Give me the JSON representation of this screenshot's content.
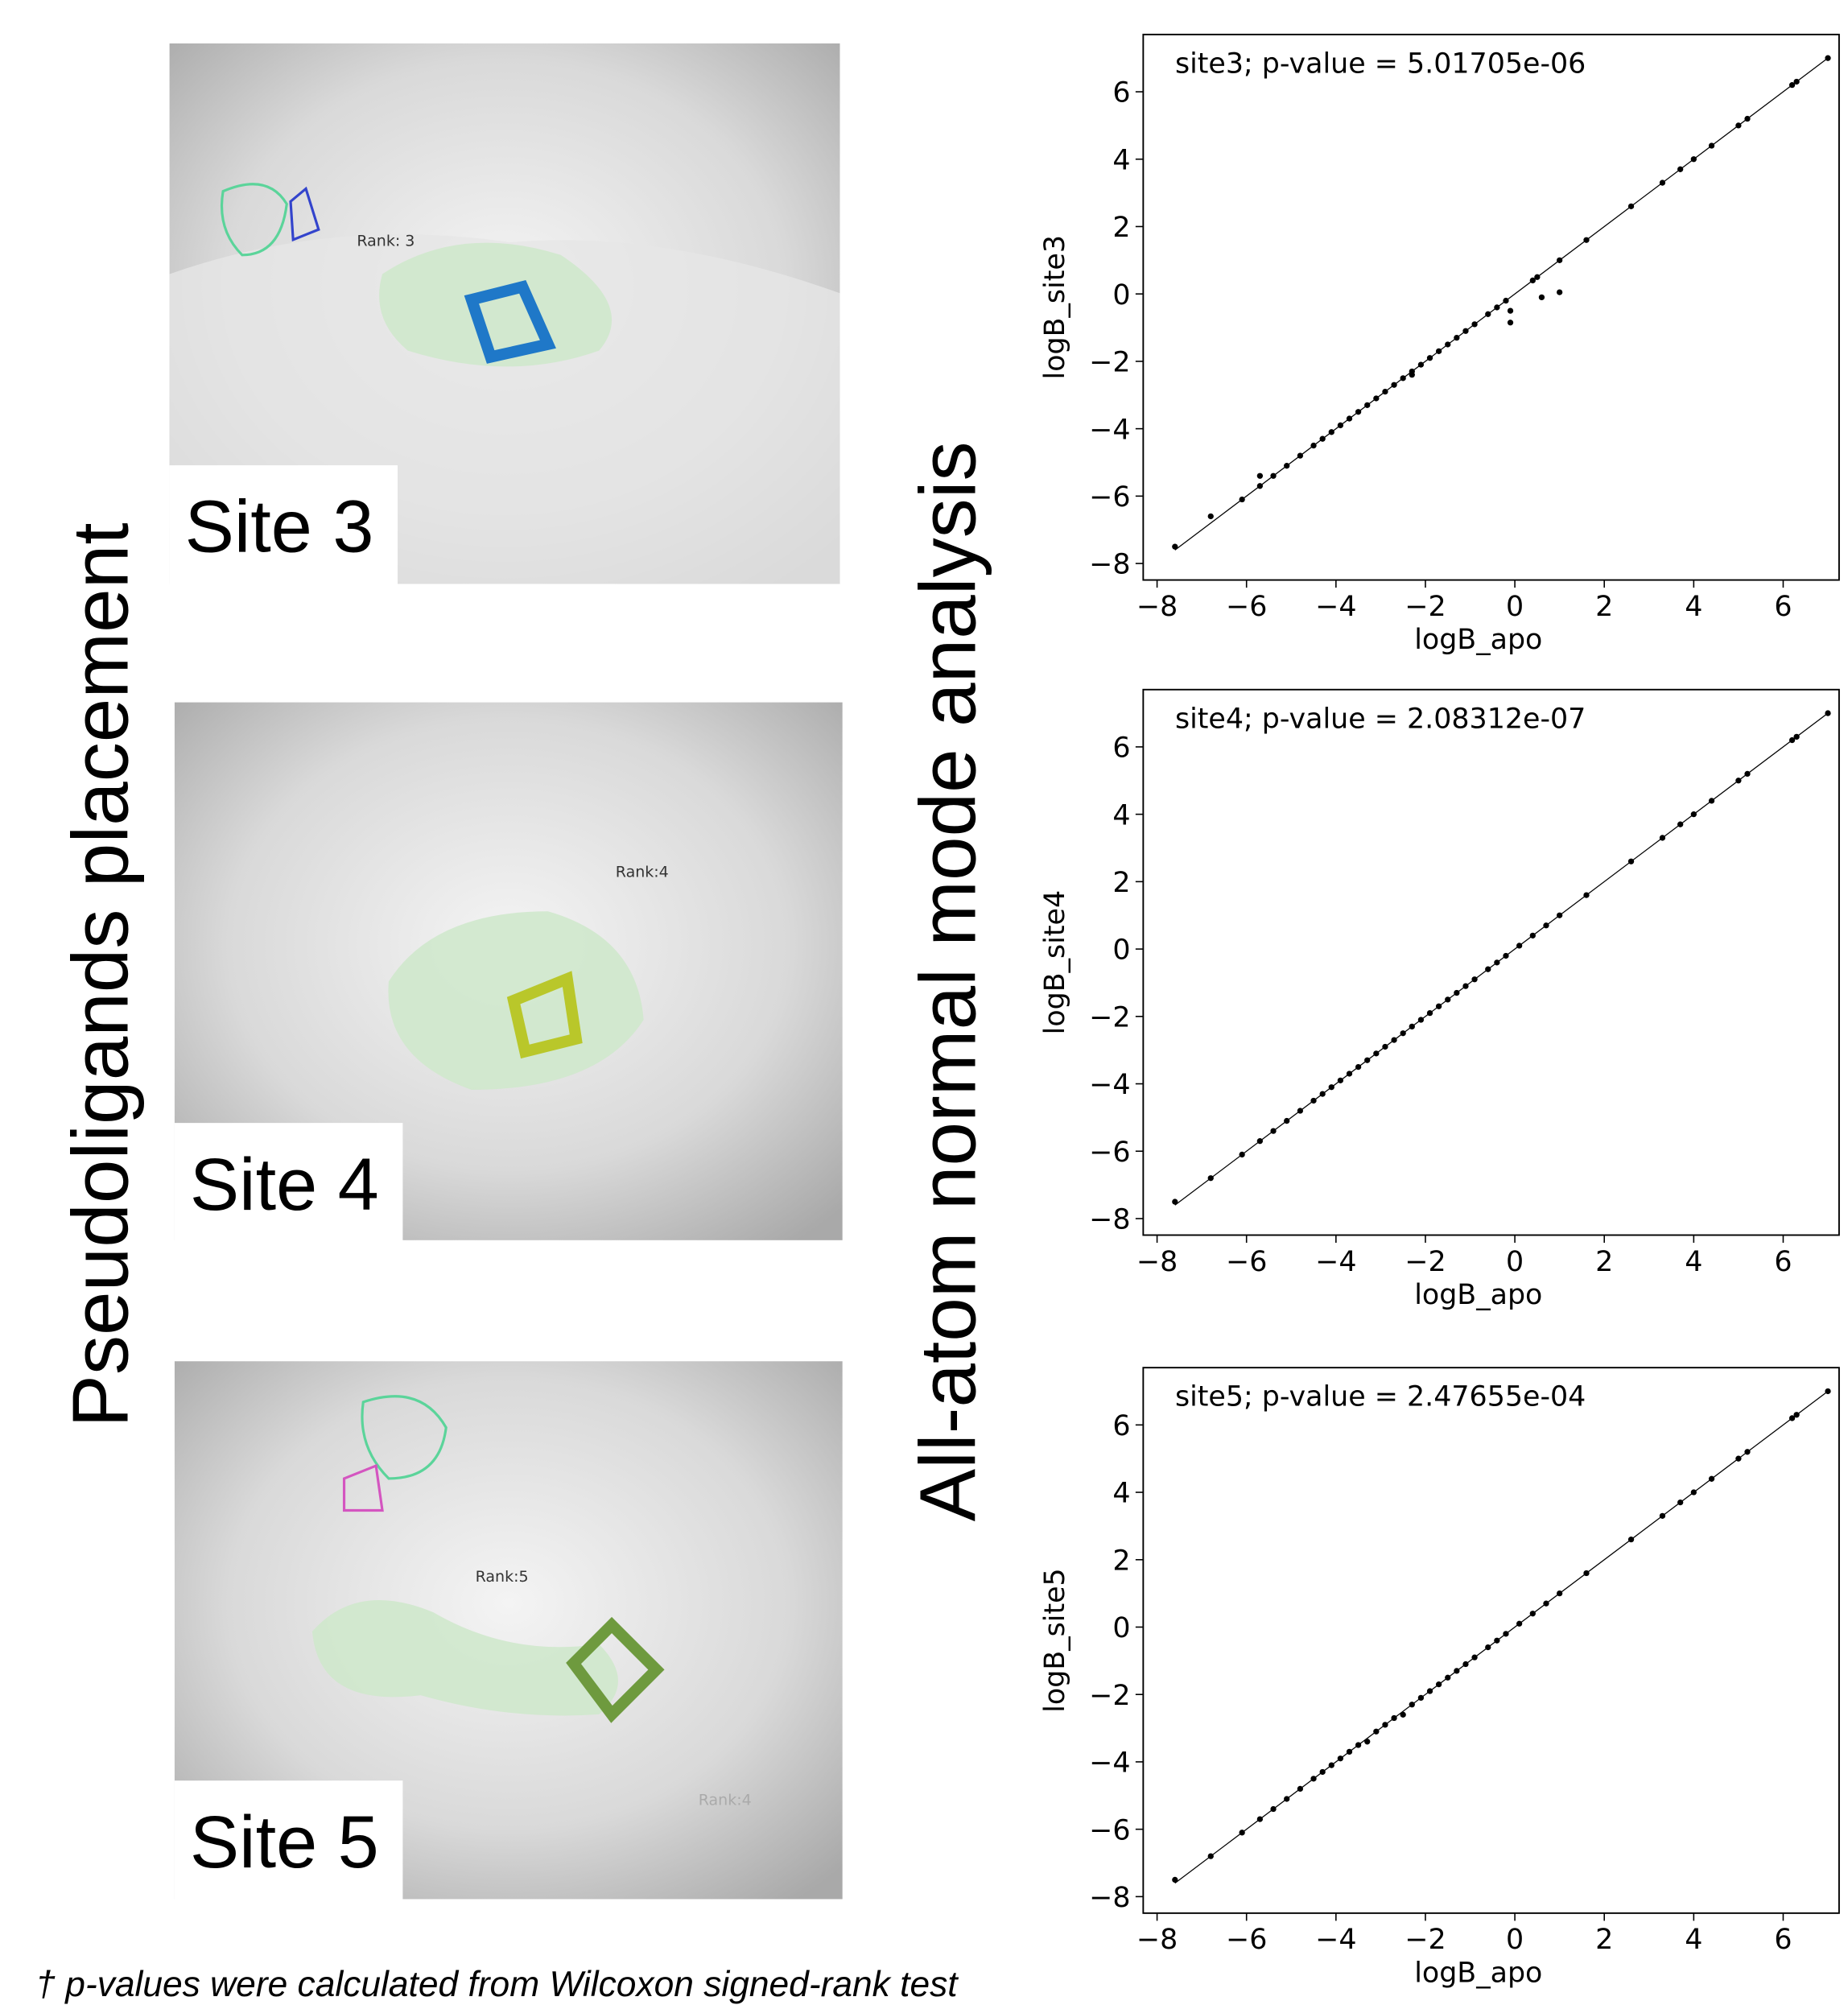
{
  "figure": {
    "left_label": "Pseudoligands placement",
    "middle_label": "All-atom normal mode analysis",
    "panels": [
      {
        "label": "Site 3",
        "rank": "Rank: 3"
      },
      {
        "label": "Site 4",
        "rank": "Rank:4"
      },
      {
        "label": "Site 5",
        "rank": "Rank:5",
        "extra_rank": "Rank:4"
      }
    ],
    "footnote": "† p-values were calculated from Wilcoxon signed-rank test"
  },
  "chart_data": [
    {
      "type": "scatter",
      "title": "site3; p-value = 5.01705e-06",
      "x_label": "logB_apo",
      "y_label": "logB_site3",
      "color": "#000000",
      "x": [
        -7.6,
        -6.8,
        -6.1,
        -5.7,
        -5.7,
        -5.4,
        -5.1,
        -4.8,
        -4.5,
        -4.3,
        -4.1,
        -3.9,
        -3.7,
        -3.5,
        -3.3,
        -3.1,
        -2.9,
        -2.7,
        -2.5,
        -2.3,
        -2.3,
        -2.1,
        -1.9,
        -1.7,
        -1.5,
        -1.3,
        -1.1,
        -0.9,
        -0.6,
        -0.4,
        -0.1,
        -0.1,
        -0.2,
        0.4,
        0.5,
        0.6,
        1.0,
        1.0,
        1.6,
        2.6,
        3.3,
        3.7,
        4.0,
        4.4,
        5.0,
        5.2,
        6.2,
        6.3,
        7.0
      ],
      "values": [
        -7.5,
        -6.6,
        -6.1,
        -5.7,
        -5.4,
        -5.4,
        -5.1,
        -4.8,
        -4.5,
        -4.3,
        -4.1,
        -3.9,
        -3.7,
        -3.5,
        -3.3,
        -3.1,
        -2.9,
        -2.7,
        -2.5,
        -2.3,
        -2.4,
        -2.1,
        -1.9,
        -1.7,
        -1.5,
        -1.3,
        -1.1,
        -0.9,
        -0.6,
        -0.4,
        -0.5,
        -0.85,
        -0.2,
        0.4,
        0.5,
        -0.1,
        0.05,
        1.0,
        1.6,
        2.6,
        3.3,
        3.7,
        4.0,
        4.4,
        5.0,
        5.2,
        6.2,
        6.3,
        7.0
      ],
      "xlim": [
        -8.31,
        7.25
      ],
      "ylim": [
        -8.49,
        7.7
      ],
      "xticks": [
        {
          "value": -8,
          "label": "−8"
        },
        {
          "value": -6,
          "label": "−6"
        },
        {
          "value": -4,
          "label": "−4"
        },
        {
          "value": -2,
          "label": "−2"
        },
        0,
        2,
        4,
        6
      ],
      "yticks": [
        {
          "value": -8,
          "label": "−8"
        },
        {
          "value": -6,
          "label": "−6"
        },
        {
          "value": -4,
          "label": "−4"
        },
        {
          "value": -2,
          "label": "−2"
        },
        0,
        2,
        4,
        6
      ]
    },
    {
      "type": "scatter",
      "title": "site4; p-value = 2.08312e-07",
      "x_label": "logB_apo",
      "y_label": "logB_site4",
      "color": "#000000",
      "x": [
        -7.6,
        -6.8,
        -6.1,
        -5.7,
        -5.4,
        -5.1,
        -4.8,
        -4.5,
        -4.3,
        -4.1,
        -3.9,
        -3.7,
        -3.5,
        -3.3,
        -3.1,
        -2.9,
        -2.7,
        -2.5,
        -2.3,
        -2.1,
        -1.9,
        -1.7,
        -1.5,
        -1.3,
        -1.1,
        -0.9,
        -0.6,
        -0.4,
        -0.2,
        0.1,
        0.4,
        0.7,
        1.0,
        1.6,
        2.6,
        3.3,
        3.7,
        4.0,
        4.4,
        5.0,
        5.2,
        6.2,
        6.3,
        7.0
      ],
      "values": [
        -7.5,
        -6.8,
        -6.1,
        -5.7,
        -5.4,
        -5.1,
        -4.8,
        -4.5,
        -4.3,
        -4.1,
        -3.9,
        -3.7,
        -3.5,
        -3.3,
        -3.1,
        -2.9,
        -2.7,
        -2.5,
        -2.3,
        -2.1,
        -1.9,
        -1.7,
        -1.5,
        -1.3,
        -1.1,
        -0.9,
        -0.6,
        -0.4,
        -0.2,
        0.1,
        0.4,
        0.7,
        1.0,
        1.6,
        2.6,
        3.3,
        3.7,
        4.0,
        4.4,
        5.0,
        5.2,
        6.2,
        6.3,
        7.0
      ],
      "xlim": [
        -8.31,
        7.25
      ],
      "ylim": [
        -8.49,
        7.7
      ],
      "xticks": [
        {
          "value": -8,
          "label": "−8"
        },
        {
          "value": -6,
          "label": "−6"
        },
        {
          "value": -4,
          "label": "−4"
        },
        {
          "value": -2,
          "label": "−2"
        },
        0,
        2,
        4,
        6
      ],
      "yticks": [
        {
          "value": -8,
          "label": "−8"
        },
        {
          "value": -6,
          "label": "−6"
        },
        {
          "value": -4,
          "label": "−4"
        },
        {
          "value": -2,
          "label": "−2"
        },
        0,
        2,
        4,
        6
      ]
    },
    {
      "type": "scatter",
      "title": "site5; p-value = 2.47655e-04",
      "x_label": "logB_apo",
      "y_label": "logB_site5",
      "color": "#000000",
      "x": [
        -7.6,
        -6.8,
        -6.1,
        -5.7,
        -5.4,
        -5.1,
        -4.8,
        -4.5,
        -4.3,
        -4.1,
        -3.9,
        -3.7,
        -3.5,
        -3.3,
        -3.1,
        -2.9,
        -2.7,
        -2.5,
        -2.3,
        -2.1,
        -1.9,
        -1.7,
        -1.5,
        -1.3,
        -1.1,
        -0.9,
        -0.6,
        -0.4,
        -0.2,
        0.1,
        0.4,
        0.7,
        1.0,
        1.6,
        2.6,
        3.3,
        3.7,
        4.0,
        4.4,
        5.0,
        5.2,
        6.2,
        6.3,
        7.0
      ],
      "values": [
        -7.5,
        -6.8,
        -6.1,
        -5.7,
        -5.4,
        -5.1,
        -4.8,
        -4.5,
        -4.3,
        -4.1,
        -3.9,
        -3.7,
        -3.5,
        -3.4,
        -3.1,
        -2.9,
        -2.7,
        -2.6,
        -2.3,
        -2.1,
        -1.9,
        -1.7,
        -1.5,
        -1.3,
        -1.1,
        -0.9,
        -0.6,
        -0.4,
        -0.2,
        0.1,
        0.4,
        0.7,
        1.0,
        1.6,
        2.6,
        3.3,
        3.7,
        4.0,
        4.4,
        5.0,
        5.2,
        6.2,
        6.3,
        7.0
      ],
      "xlim": [
        -8.31,
        7.25
      ],
      "ylim": [
        -8.49,
        7.7
      ],
      "xticks": [
        {
          "value": -8,
          "label": "−8"
        },
        {
          "value": -6,
          "label": "−6"
        },
        {
          "value": -4,
          "label": "−4"
        },
        {
          "value": -2,
          "label": "−2"
        },
        0,
        2,
        4,
        6
      ],
      "yticks": [
        {
          "value": -8,
          "label": "−8"
        },
        {
          "value": -6,
          "label": "−6"
        },
        {
          "value": -4,
          "label": "−4"
        },
        {
          "value": -2,
          "label": "−2"
        },
        0,
        2,
        4,
        6
      ]
    }
  ]
}
